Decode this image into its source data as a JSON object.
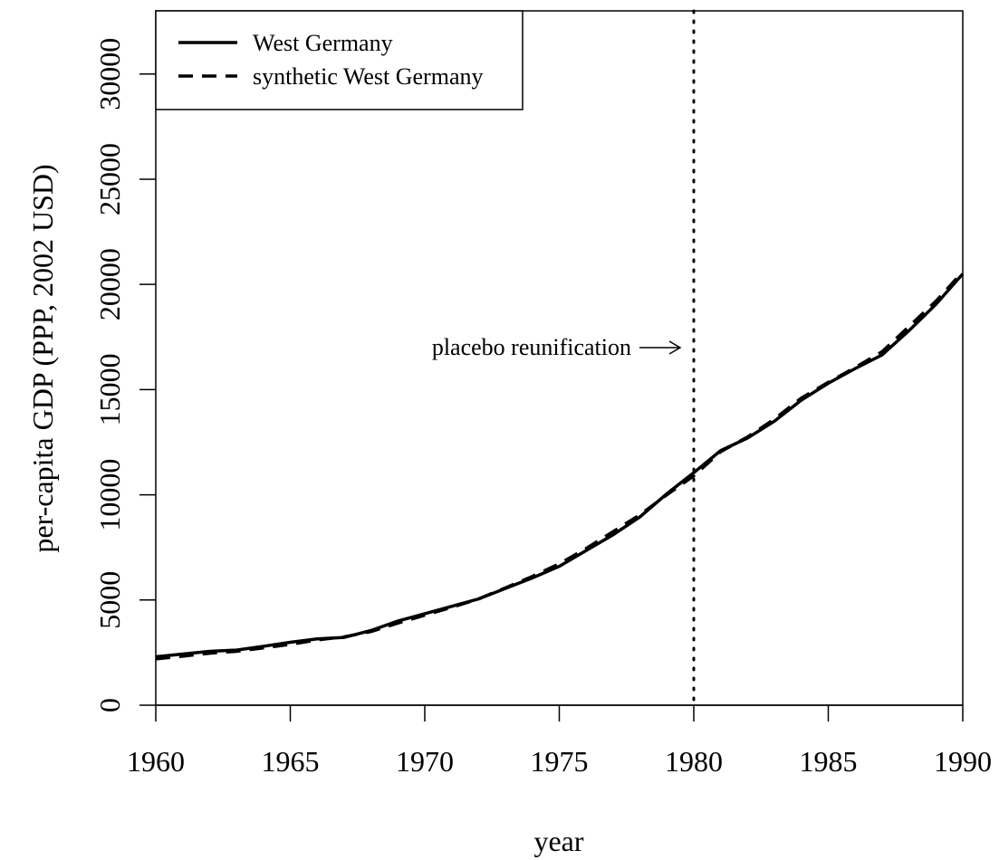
{
  "chart_data": {
    "type": "line",
    "x_label": "year",
    "y_label": "per-capita GDP (PPP, 2002 USD)",
    "x": [
      1960,
      1961,
      1962,
      1963,
      1964,
      1965,
      1966,
      1967,
      1968,
      1969,
      1970,
      1971,
      1972,
      1973,
      1974,
      1975,
      1976,
      1977,
      1978,
      1979,
      1980,
      1981,
      1982,
      1983,
      1984,
      1985,
      1986,
      1987,
      1988,
      1989,
      1990
    ],
    "series": [
      {
        "name": "West Germany",
        "color": "#000000",
        "dash": "solid",
        "values": [
          2300,
          2430,
          2560,
          2620,
          2800,
          2990,
          3150,
          3220,
          3550,
          4000,
          4350,
          4700,
          5050,
          5550,
          6050,
          6600,
          7350,
          8100,
          8950,
          10050,
          11050,
          12100,
          12700,
          13500,
          14500,
          15300,
          16000,
          16650,
          17800,
          19050,
          20500
        ]
      },
      {
        "name": "synthetic West Germany",
        "color": "#000000",
        "dash": "dashed",
        "values": [
          2200,
          2330,
          2470,
          2560,
          2720,
          2890,
          3100,
          3250,
          3500,
          3900,
          4280,
          4650,
          5050,
          5580,
          6120,
          6720,
          7450,
          8250,
          9050,
          10000,
          10900,
          12050,
          12750,
          13600,
          14600,
          15350,
          16050,
          16800,
          18000,
          19200,
          20600
        ]
      }
    ],
    "xlim": [
      1960,
      1990
    ],
    "ylim": [
      0,
      33000
    ],
    "xticks": [
      1960,
      1965,
      1970,
      1975,
      1980,
      1985,
      1990
    ],
    "yticks": [
      0,
      5000,
      10000,
      15000,
      20000,
      25000,
      30000
    ],
    "vline": 1980,
    "annotation": "placebo reunification",
    "legend": "top-left"
  }
}
